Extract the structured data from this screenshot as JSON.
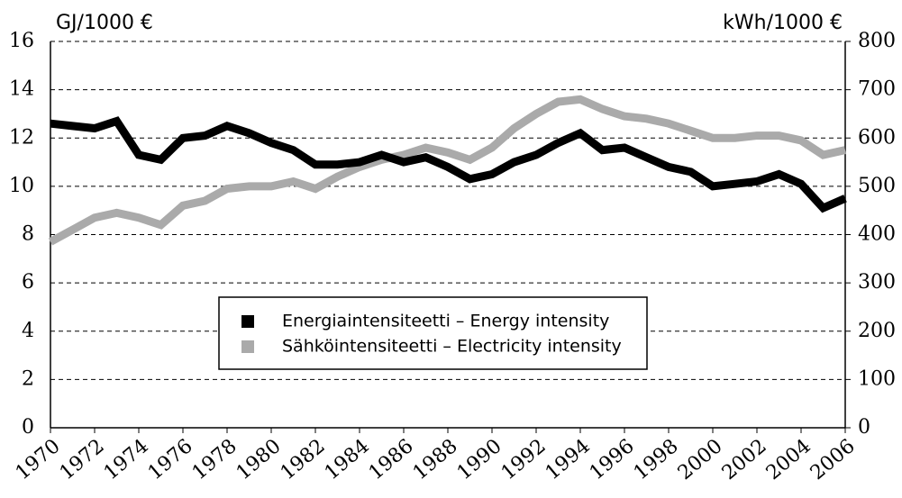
{
  "chart_data": {
    "type": "line",
    "ylabel": "GJ/1000 €",
    "y2label": "kWh/1000 €",
    "x": [
      1970,
      1971,
      1972,
      1973,
      1974,
      1975,
      1976,
      1977,
      1978,
      1979,
      1980,
      1981,
      1982,
      1983,
      1984,
      1985,
      1986,
      1987,
      1988,
      1989,
      1990,
      1991,
      1992,
      1993,
      1994,
      1995,
      1996,
      1997,
      1998,
      1999,
      2000,
      2001,
      2002,
      2003,
      2004,
      2005,
      2006
    ],
    "series": [
      {
        "name": "Energiaintensiteetti – Energy intensity",
        "color": "#000000",
        "axis": "y",
        "values": [
          12.6,
          12.5,
          12.4,
          12.7,
          11.3,
          11.1,
          12.0,
          12.1,
          12.5,
          12.2,
          11.8,
          11.5,
          10.9,
          10.9,
          11.0,
          11.3,
          11.0,
          11.2,
          10.8,
          10.3,
          10.5,
          11.0,
          11.3,
          11.8,
          12.2,
          11.5,
          11.6,
          11.2,
          10.8,
          10.6,
          10.0,
          10.1,
          10.2,
          10.5,
          10.1,
          9.1,
          9.5
        ]
      },
      {
        "name": "Sähköintensiteetti – Electricity intensity",
        "color": "#aaaaaa",
        "axis": "y2",
        "values": [
          385,
          410,
          435,
          445,
          435,
          420,
          460,
          470,
          495,
          500,
          500,
          510,
          495,
          520,
          540,
          555,
          565,
          580,
          570,
          555,
          580,
          620,
          650,
          675,
          680,
          660,
          645,
          640,
          630,
          615,
          600,
          600,
          605,
          605,
          595,
          565,
          575
        ]
      }
    ],
    "xlim": [
      1970,
      2006
    ],
    "xticks": [
      1970,
      1972,
      1974,
      1976,
      1978,
      1980,
      1982,
      1984,
      1986,
      1988,
      1990,
      1992,
      1994,
      1996,
      1998,
      2000,
      2002,
      2004,
      2006
    ],
    "ylim": [
      0,
      16
    ],
    "yticks": [
      0,
      2,
      4,
      6,
      8,
      10,
      12,
      14,
      16
    ],
    "y2lim": [
      0,
      800
    ],
    "y2ticks": [
      0,
      100,
      200,
      300,
      400,
      500,
      600,
      700,
      800
    ],
    "grid": true
  }
}
